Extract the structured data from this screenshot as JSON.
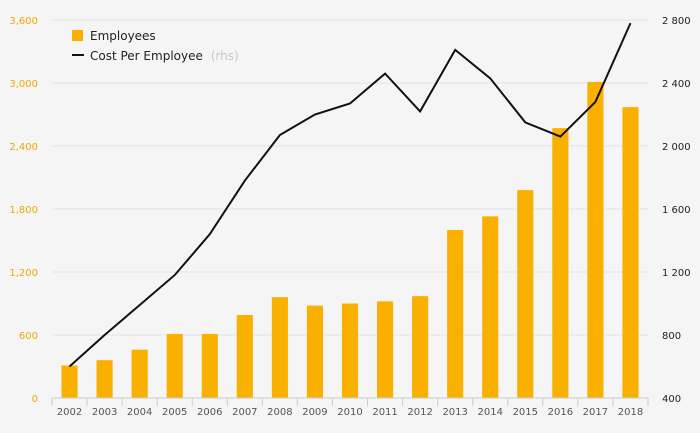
{
  "chart_data": {
    "type": "bar",
    "categories": [
      "2002",
      "2003",
      "2004",
      "2005",
      "2006",
      "2007",
      "2008",
      "2009",
      "2010",
      "2011",
      "2012",
      "2013",
      "2014",
      "2015",
      "2016",
      "2017",
      "2018"
    ],
    "series": [
      {
        "name": "Employees",
        "type": "bar",
        "axis": "left",
        "color": "#f9b000",
        "values": [
          310,
          360,
          460,
          610,
          610,
          790,
          960,
          880,
          900,
          920,
          970,
          1600,
          1730,
          1980,
          2570,
          3010,
          2770
        ]
      },
      {
        "name": "Cost Per Employee",
        "legend_suffix": "(rhs)",
        "type": "line",
        "axis": "right",
        "color": "#111111",
        "values": [
          600,
          800,
          990,
          1180,
          1440,
          1780,
          2070,
          2200,
          2270,
          2460,
          2220,
          2610,
          2430,
          2150,
          2060,
          2280,
          2780
        ]
      }
    ],
    "y_left": {
      "ticks": [
        0,
        600,
        1200,
        1800,
        2400,
        3000,
        3600
      ],
      "tick_labels": [
        "0",
        "600",
        "1,200",
        "1,800",
        "2,400",
        "3,000",
        "3,600"
      ],
      "ylim": [
        0,
        3600
      ],
      "color": "#f0a800"
    },
    "y_right": {
      "ticks": [
        400,
        800,
        1200,
        1600,
        2000,
        2400,
        2800
      ],
      "tick_labels": [
        "400",
        "800",
        "1 200",
        "1 600",
        "2 000",
        "2 400",
        "2 800"
      ],
      "ylim": [
        400,
        2800
      ]
    },
    "grid": true,
    "legend_position": "top-left",
    "title": "",
    "xlabel": "",
    "ylabel": ""
  }
}
